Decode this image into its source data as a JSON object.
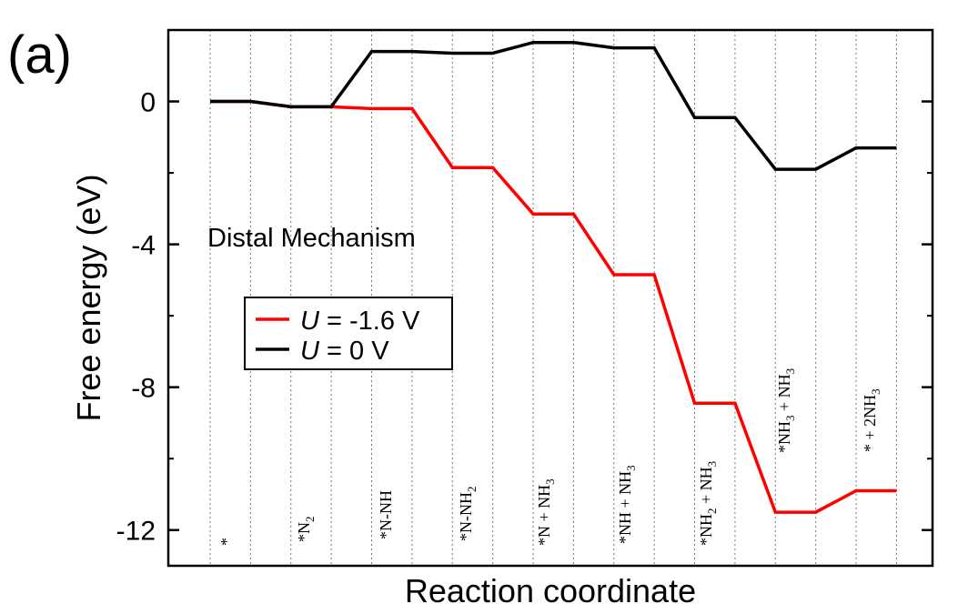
{
  "panel_label": "(a)",
  "chart_data": {
    "type": "line",
    "xlabel": "Reaction coordinate",
    "ylabel": "Free energy (eV)",
    "ylim": [
      -13,
      2
    ],
    "yticks": [
      0,
      -4,
      -8,
      -12
    ],
    "ytick_labels": [
      "0",
      "-4",
      "-8",
      "-12"
    ],
    "annotation": "Distal Mechanism",
    "grid": "vertical dotted lines at step boundaries",
    "legend_position": "center-left",
    "steps": [
      {
        "main": "*",
        "sub": ""
      },
      {
        "main": "*N",
        "sub": "2"
      },
      {
        "main": "*N-NH",
        "sub": ""
      },
      {
        "main": "*N-NH",
        "sub": "2"
      },
      {
        "main": "*N + NH",
        "sub": "3"
      },
      {
        "main": "*NH + NH",
        "sub": "3"
      },
      {
        "main": "*NH",
        "sub": "2",
        "main2": " + NH",
        "sub2": "3"
      },
      {
        "main": "*NH",
        "sub": "3",
        "main2": " + NH",
        "sub2": "3"
      },
      {
        "main": "* + 2NH",
        "sub": "3"
      }
    ],
    "series": [
      {
        "name": "U = 0 V",
        "legend_italic": "U",
        "legend_rest": " = 0 V",
        "color": "#000000",
        "values": [
          0.0,
          -0.15,
          1.4,
          1.35,
          1.65,
          1.5,
          -0.45,
          -1.9,
          -1.3
        ]
      },
      {
        "name": "U = -1.6 V",
        "legend_italic": "U",
        "legend_rest": " = -1.6 V",
        "color": "#ff0000",
        "values": [
          0.0,
          -0.15,
          -0.2,
          -1.85,
          -3.15,
          -4.85,
          -8.45,
          -11.5,
          -10.9
        ]
      }
    ]
  }
}
